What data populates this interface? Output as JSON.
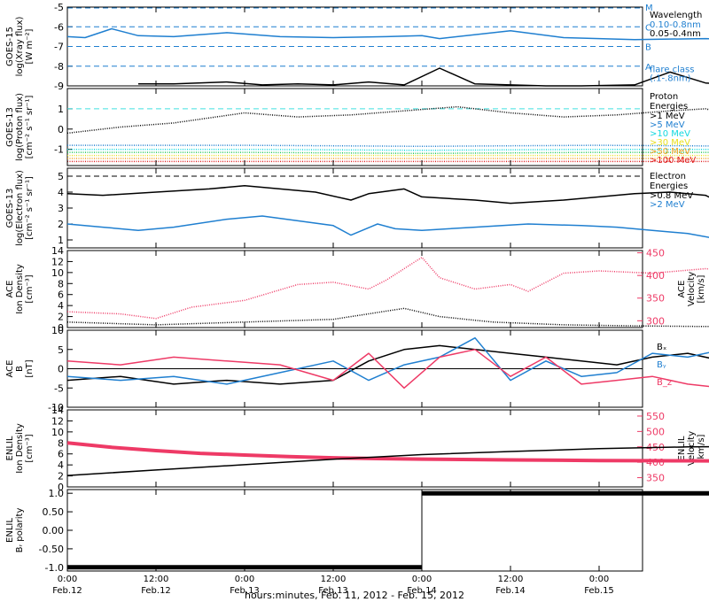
{
  "colors": {
    "black": "#000000",
    "blue": "#1f7fd0",
    "cyan": "#13d8e0",
    "green": "#1fc85a",
    "yellow": "#e8e020",
    "orange": "#f0a020",
    "red": "#e02020",
    "pink": "#ee3a66",
    "dash_blue": "#1f7fd0",
    "dash_cyan": "#40e0e0"
  },
  "footer": {
    "xlabel": "hours:minutes, Feb. 11, 2012 - Feb. 15, 2012",
    "tick_times": [
      "0:00",
      "12:00",
      "0:00",
      "12:00",
      "0:00",
      "12:00",
      "0:00"
    ],
    "tick_dates": [
      "Feb.12",
      "Feb.12",
      "Feb.13",
      "Feb.13",
      "Feb.14",
      "Feb.14",
      "Feb.15"
    ]
  },
  "chart_data": [
    {
      "id": "goes15_xray",
      "type": "line",
      "ylabel": [
        "GOES-15",
        "log(Xray flux)",
        "[W m⁻²]"
      ],
      "ylim": [
        -9,
        -5
      ],
      "ticks": [
        -9,
        -8,
        -7,
        -6,
        -5
      ],
      "right_letters": [
        "M",
        "C",
        "B",
        "A"
      ],
      "legend": {
        "title": "Wavelength",
        "entries": [
          {
            "label": "0.10-0.8nm",
            "color": "blue"
          },
          {
            "label": "0.05-0.4nm",
            "color": "black"
          },
          {
            "label": "flare class",
            "color": "blue"
          },
          {
            "label": "(.1-.8nm)",
            "color": "blue"
          }
        ]
      },
      "series": [
        {
          "color": "blue",
          "x": [
            0,
            0.1,
            0.25,
            0.4,
            0.6,
            0.9,
            1.2,
            1.5,
            1.8,
            2.0,
            2.1,
            2.5,
            2.8,
            3.0,
            3.2,
            3.6,
            3.95
          ],
          "y": [
            -6.5,
            -6.55,
            -6.1,
            -6.45,
            -6.5,
            -6.3,
            -6.5,
            -6.55,
            -6.5,
            -6.45,
            -6.6,
            -6.2,
            -6.55,
            -6.6,
            -6.65,
            -6.6,
            -6.7
          ]
        },
        {
          "color": "black",
          "x": [
            0.4,
            0.6,
            0.9,
            1.1,
            1.3,
            1.5,
            1.7,
            1.9,
            2.1,
            2.3,
            2.5,
            2.7,
            2.9,
            3.2,
            3.4,
            3.6,
            3.8,
            3.95
          ],
          "y": [
            -8.9,
            -8.9,
            -8.8,
            -8.95,
            -8.9,
            -8.95,
            -8.8,
            -8.95,
            -8.1,
            -8.9,
            -8.95,
            -9.0,
            -9.0,
            -8.95,
            -8.3,
            -8.85,
            -9.0,
            -9.0
          ]
        }
      ]
    },
    {
      "id": "goes13_proton",
      "type": "scatter",
      "ylabel": [
        "GOES-13",
        "log(Proton flux)",
        "[cm⁻² s⁻¹ sr⁻¹]"
      ],
      "ylim": [
        -1.8,
        2
      ],
      "ticks": [
        -1,
        0,
        1
      ],
      "legend": {
        "title": "Proton",
        "title2": "Energies",
        "entries": [
          {
            "label": ">1 MeV",
            "color": "black"
          },
          {
            "label": ">5 MeV",
            "color": "blue"
          },
          {
            "label": ">10 MeV",
            "color": "cyan"
          },
          {
            "label": ">30 MeV",
            "color": "yellow"
          },
          {
            "label": ">50 MeV",
            "color": "orange"
          },
          {
            "label": ">100 MeV",
            "color": "red"
          }
        ]
      },
      "series": [
        {
          "color": "black",
          "x": [
            0,
            0.3,
            0.6,
            1.0,
            1.3,
            1.6,
            1.9,
            2.2,
            2.5,
            2.8,
            3.1,
            3.4,
            3.6,
            3.8,
            3.95
          ],
          "y": [
            -0.2,
            0.1,
            0.3,
            0.8,
            0.6,
            0.7,
            0.9,
            1.1,
            0.8,
            0.6,
            0.7,
            0.9,
            1.0,
            0.6,
            0.3
          ]
        },
        {
          "color": "blue",
          "x": [
            0,
            1,
            2,
            3,
            3.95
          ],
          "y": [
            -0.8,
            -0.8,
            -0.85,
            -0.8,
            -0.85
          ]
        },
        {
          "color": "cyan",
          "x": [
            0,
            1,
            2,
            3,
            3.95
          ],
          "y": [
            -1.0,
            -1.0,
            -1.05,
            -1.0,
            -1.0
          ]
        },
        {
          "color": "green",
          "x": [
            0,
            1,
            2,
            3,
            3.95
          ],
          "y": [
            -1.15,
            -1.15,
            -1.2,
            -1.15,
            -1.15
          ]
        },
        {
          "color": "yellow",
          "x": [
            0,
            1,
            2,
            3,
            3.95
          ],
          "y": [
            -1.3,
            -1.3,
            -1.3,
            -1.3,
            -1.3
          ]
        },
        {
          "color": "orange",
          "x": [
            0,
            1,
            2,
            3,
            3.95
          ],
          "y": [
            -1.45,
            -1.45,
            -1.45,
            -1.45,
            -1.45
          ]
        },
        {
          "color": "red",
          "x": [
            0,
            1,
            2,
            3,
            3.95
          ],
          "y": [
            -1.6,
            -1.6,
            -1.6,
            -1.6,
            -1.6
          ]
        }
      ]
    },
    {
      "id": "goes13_electron",
      "type": "line",
      "ylabel": [
        "GOES-13",
        "log(Electron flux)",
        "[cm⁻² s⁻¹ sr⁻¹]"
      ],
      "ylim": [
        0.5,
        5.5
      ],
      "ticks": [
        1,
        2,
        3,
        4,
        5
      ],
      "legend": {
        "title": "Electron",
        "title2": "Energies",
        "entries": [
          {
            "label": ">0.8 MeV",
            "color": "black"
          },
          {
            "label": ">2 MeV",
            "color": "blue"
          }
        ]
      },
      "series": [
        {
          "color": "black",
          "x": [
            0,
            0.2,
            0.5,
            0.8,
            1.0,
            1.2,
            1.4,
            1.6,
            1.7,
            1.9,
            2.0,
            2.3,
            2.5,
            2.8,
            3.0,
            3.2,
            3.4,
            3.6,
            3.75,
            3.85,
            3.95
          ],
          "y": [
            3.9,
            3.8,
            4.0,
            4.2,
            4.4,
            4.2,
            4.0,
            3.5,
            3.9,
            4.2,
            3.7,
            3.5,
            3.3,
            3.5,
            3.7,
            3.9,
            4.0,
            3.8,
            3.0,
            2.8,
            3.7
          ]
        },
        {
          "color": "blue",
          "x": [
            0,
            0.2,
            0.4,
            0.6,
            0.9,
            1.1,
            1.3,
            1.5,
            1.6,
            1.75,
            1.85,
            2.0,
            2.3,
            2.6,
            2.9,
            3.1,
            3.3,
            3.5,
            3.7,
            3.85,
            3.95
          ],
          "y": [
            2.0,
            1.8,
            1.6,
            1.8,
            2.3,
            2.5,
            2.2,
            1.9,
            1.3,
            2.0,
            1.7,
            1.6,
            1.8,
            2.0,
            1.9,
            1.8,
            1.6,
            1.4,
            1.0,
            0.9,
            1.1
          ]
        }
      ]
    },
    {
      "id": "ace_density",
      "type": "scatter",
      "ylabel": [
        "ACE",
        "Ion Density",
        "[cm⁻³]"
      ],
      "ylim": [
        0,
        14
      ],
      "ticks": [
        0,
        2,
        4,
        6,
        8,
        10,
        12,
        14
      ],
      "yright": {
        "label": [
          "ACE",
          "Velocity",
          "[km/s]"
        ],
        "ylim": [
          285,
          455
        ],
        "ticks": [
          300,
          350,
          400,
          450
        ],
        "color": "pink"
      },
      "series": [
        {
          "color": "black",
          "axis": "left",
          "x": [
            0,
            0.5,
            1.0,
            1.5,
            1.7,
            1.9,
            2.1,
            2.4,
            2.8,
            3.2,
            3.6,
            3.95
          ],
          "y": [
            1.0,
            0.5,
            1.0,
            1.5,
            2.5,
            3.5,
            2.0,
            1.0,
            0.5,
            0.3,
            0.2,
            0.2
          ]
        },
        {
          "color": "pink",
          "axis": "right",
          "x": [
            0,
            0.3,
            0.5,
            0.7,
            1.0,
            1.3,
            1.5,
            1.7,
            1.8,
            2.0,
            2.1,
            2.3,
            2.5,
            2.6,
            2.8,
            3.0,
            3.3,
            3.6,
            3.95
          ],
          "y": [
            320,
            315,
            305,
            330,
            345,
            380,
            385,
            370,
            390,
            440,
            395,
            370,
            380,
            365,
            405,
            410,
            405,
            415,
            405
          ]
        }
      ]
    },
    {
      "id": "ace_mag",
      "type": "line",
      "ylabel": [
        "ACE",
        "B",
        "[nT]"
      ],
      "ylim": [
        -10,
        10
      ],
      "ticks": [
        -10,
        -5,
        0,
        5,
        10
      ],
      "legend": {
        "entries": [
          {
            "label": "Bₓ",
            "color": "black"
          },
          {
            "label": "Bᵧ",
            "color": "blue"
          },
          {
            "label": "B_z",
            "color": "pink"
          }
        ]
      },
      "series": [
        {
          "color": "black",
          "x": [
            0,
            0.3,
            0.6,
            0.9,
            1.2,
            1.5,
            1.7,
            1.9,
            2.1,
            2.3,
            2.5,
            2.7,
            2.9,
            3.1,
            3.3,
            3.5,
            3.7,
            3.95
          ],
          "y": [
            -3,
            -2,
            -4,
            -3,
            -4,
            -3,
            2,
            5,
            6,
            5,
            4,
            3,
            2,
            1,
            3,
            4,
            2,
            -1
          ]
        },
        {
          "color": "blue",
          "x": [
            0,
            0.3,
            0.6,
            0.9,
            1.2,
            1.5,
            1.7,
            1.9,
            2.1,
            2.3,
            2.5,
            2.7,
            2.9,
            3.1,
            3.3,
            3.5,
            3.7,
            3.95
          ],
          "y": [
            -2,
            -3,
            -2,
            -4,
            -1,
            2,
            -3,
            1,
            3,
            8,
            -3,
            2,
            -2,
            -1,
            4,
            3,
            5,
            7
          ]
        },
        {
          "color": "pink",
          "x": [
            0,
            0.3,
            0.6,
            0.9,
            1.2,
            1.5,
            1.7,
            1.9,
            2.1,
            2.3,
            2.5,
            2.7,
            2.9,
            3.1,
            3.3,
            3.5,
            3.7,
            3.95
          ],
          "y": [
            2,
            1,
            3,
            2,
            1,
            -3,
            4,
            -5,
            3,
            5,
            -2,
            3,
            -4,
            -3,
            -2,
            -4,
            -5,
            -4
          ]
        }
      ]
    },
    {
      "id": "enlil_density",
      "type": "line",
      "ylabel": [
        "ENLIL",
        "Ion Density",
        "[cm⁻³]"
      ],
      "ylim": [
        0,
        14
      ],
      "ticks": [
        0,
        2,
        4,
        6,
        8,
        10,
        12,
        14
      ],
      "yright": {
        "label": [
          "ENLIL",
          "Velocity",
          "[km/s]"
        ],
        "ylim": [
          320,
          570
        ],
        "ticks": [
          350,
          400,
          450,
          500,
          550
        ],
        "color": "pink"
      },
      "series": [
        {
          "color": "pink",
          "axis": "left",
          "width": 4,
          "x": [
            0,
            0.25,
            0.5,
            0.75,
            1.0,
            1.25,
            1.5,
            1.75,
            2.0,
            2.5,
            3.0,
            3.5,
            4.0,
            4.4
          ],
          "y": [
            8.0,
            7.2,
            6.6,
            6.1,
            5.8,
            5.5,
            5.3,
            5.15,
            5.05,
            4.9,
            4.8,
            4.75,
            4.7,
            4.7
          ]
        },
        {
          "color": "black",
          "axis": "right",
          "x": [
            0,
            0.5,
            1.0,
            1.5,
            2.0,
            2.5,
            3.0,
            3.5,
            4.0,
            4.4
          ],
          "y": [
            357,
            375,
            392,
            410,
            425,
            435,
            444,
            450,
            452,
            452
          ]
        }
      ]
    },
    {
      "id": "enlil_polarity",
      "type": "line",
      "ylabel": [
        "ENLIL",
        "Bᵣ polarity"
      ],
      "ylim": [
        -1.1,
        1.1
      ],
      "ticks": [
        -1.0,
        -0.5,
        0.0,
        0.5,
        1.0
      ],
      "tick_labels": [
        "-1.0",
        "-0.50",
        "0.00",
        "0.50",
        "1.0"
      ],
      "series": [
        {
          "color": "black",
          "width": 5,
          "x": [
            0,
            2.0
          ],
          "y": [
            -1.0,
            -1.0
          ]
        },
        {
          "color": "black",
          "width": 1,
          "x": [
            2.0,
            2.0
          ],
          "y": [
            -1.0,
            1.0
          ]
        },
        {
          "color": "black",
          "width": 5,
          "x": [
            2.0,
            6.4
          ],
          "y": [
            1.0,
            1.0
          ]
        }
      ]
    }
  ]
}
